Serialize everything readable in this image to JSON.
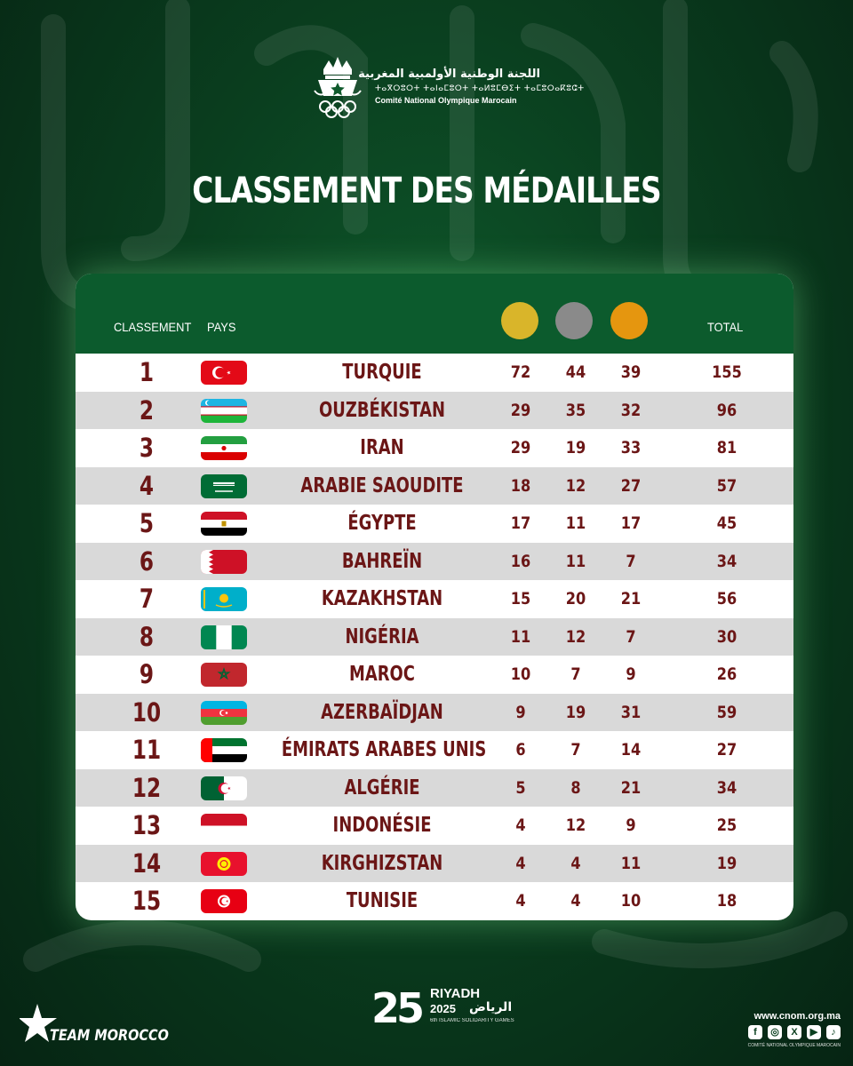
{
  "header": {
    "org_arabic": "اللجنة الوطنية الأولمبية المغربية",
    "org_tifinagh": "ⵜⴰⴳⵔⵓⵔⵜ ⵜⴰⵏⴰⵎⵓⵔⵜ ⵜⴰⵍⵓⵎⴱⵉⵜ ⵜⴰⵎⵓⵔⴰⴽⵓⵛⵜ",
    "org_french": "Comité National Olympique Marocain"
  },
  "title": "CLASSEMENT DES MÉDAILLES",
  "table": {
    "col_rank": "CLASSEMENT",
    "col_country": "PAYS",
    "col_total": "TOTAL",
    "medal_colors": {
      "gold": "#d9b52a",
      "silver": "#8a8a8a",
      "bronze": "#e5960f"
    },
    "rows": [
      {
        "rank": "1",
        "country": "TURQUIE",
        "flag": "flag-turkey",
        "gold": "72",
        "silver": "44",
        "bronze": "39",
        "total": "155"
      },
      {
        "rank": "2",
        "country": "OUZBÉKISTAN",
        "flag": "flag-uzbekistan",
        "gold": "29",
        "silver": "35",
        "bronze": "32",
        "total": "96"
      },
      {
        "rank": "3",
        "country": "IRAN",
        "flag": "flag-iran",
        "gold": "29",
        "silver": "19",
        "bronze": "33",
        "total": "81"
      },
      {
        "rank": "4",
        "country": "ARABIE SAOUDITE",
        "flag": "flag-saudi-arabia",
        "gold": "18",
        "silver": "12",
        "bronze": "27",
        "total": "57"
      },
      {
        "rank": "5",
        "country": "ÉGYPTE",
        "flag": "flag-egypt",
        "gold": "17",
        "silver": "11",
        "bronze": "17",
        "total": "45"
      },
      {
        "rank": "6",
        "country": "BAHREÏN",
        "flag": "flag-bahrain",
        "gold": "16",
        "silver": "11",
        "bronze": "7",
        "total": "34"
      },
      {
        "rank": "7",
        "country": "KAZAKHSTAN",
        "flag": "flag-kazakhstan",
        "gold": "15",
        "silver": "20",
        "bronze": "21",
        "total": "56"
      },
      {
        "rank": "8",
        "country": "NIGÉRIA",
        "flag": "flag-nigeria",
        "gold": "11",
        "silver": "12",
        "bronze": "7",
        "total": "30"
      },
      {
        "rank": "9",
        "country": "MAROC",
        "flag": "flag-morocco",
        "gold": "10",
        "silver": "7",
        "bronze": "9",
        "total": "26"
      },
      {
        "rank": "10",
        "country": "AZERBAÏDJAN",
        "flag": "flag-azerbaijan",
        "gold": "9",
        "silver": "19",
        "bronze": "31",
        "total": "59"
      },
      {
        "rank": "11",
        "country": "ÉMIRATS ARABES UNIS",
        "flag": "flag-uae",
        "gold": "6",
        "silver": "7",
        "bronze": "14",
        "total": "27"
      },
      {
        "rank": "12",
        "country": "ALGÉRIE",
        "flag": "flag-algeria",
        "gold": "5",
        "silver": "8",
        "bronze": "21",
        "total": "34"
      },
      {
        "rank": "13",
        "country": "INDONÉSIE",
        "flag": "flag-indonesia",
        "gold": "4",
        "silver": "12",
        "bronze": "9",
        "total": "25"
      },
      {
        "rank": "14",
        "country": "KIRGHIZSTAN",
        "flag": "flag-kyrgyzstan",
        "gold": "4",
        "silver": "4",
        "bronze": "11",
        "total": "19"
      },
      {
        "rank": "15",
        "country": "TUNISIE",
        "flag": "flag-tunisia",
        "gold": "4",
        "silver": "4",
        "bronze": "10",
        "total": "18"
      }
    ]
  },
  "footer": {
    "team": "TEAM MOROCCO",
    "games_number": "25",
    "games_name": "RIYADH",
    "games_year": "2025",
    "games_arabic": "الرياض",
    "games_subtitle": "6th ISLAMIC SOLIDARITY GAMES",
    "website": "www.cnom.org.ma",
    "website_sub": "COMITÉ NATIONAL OLYMPIQUE MAROCAIN",
    "socials": [
      "facebook-icon",
      "instagram-icon",
      "x-icon",
      "youtube-icon",
      "tiktok-icon"
    ]
  }
}
